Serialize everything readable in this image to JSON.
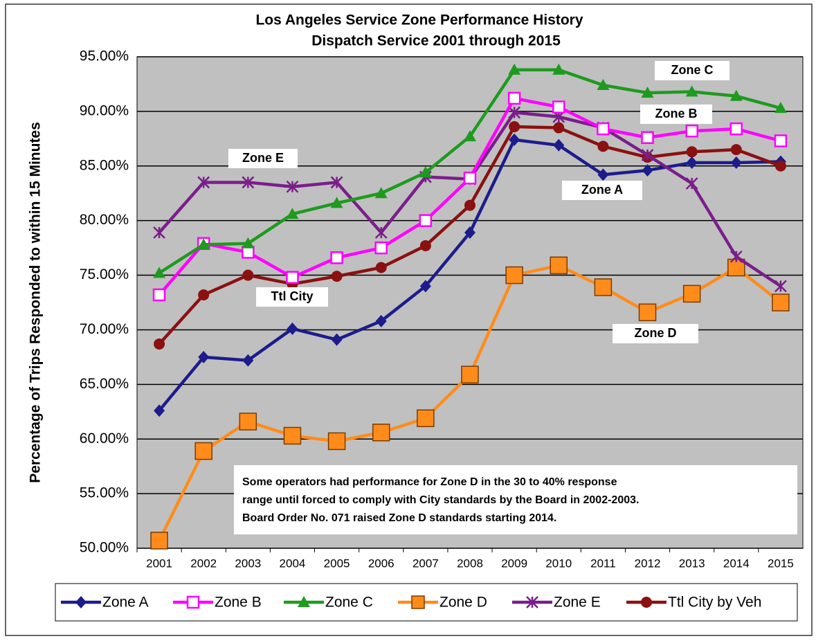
{
  "chart_data": {
    "type": "line",
    "title": "Los Angeles Service Zone Performance History",
    "subtitle": "Dispatch Service 2001 through 2015",
    "y_label": "Percentage of Trips Responded to within 15 Minutes",
    "categories": [
      "2001",
      "2002",
      "2003",
      "2004",
      "2005",
      "2006",
      "2007",
      "2008",
      "2009",
      "2010",
      "2011",
      "2012",
      "2013",
      "2014",
      "2015"
    ],
    "ylim": [
      50,
      95
    ],
    "yticks": [
      {
        "value": 50,
        "label": "50.00%"
      },
      {
        "value": 55,
        "label": "55.00%"
      },
      {
        "value": 60,
        "label": "60.00%"
      },
      {
        "value": 65,
        "label": "65.00%"
      },
      {
        "value": 70,
        "label": "70.00%"
      },
      {
        "value": 75,
        "label": "75.00%"
      },
      {
        "value": 80,
        "label": "80.00%"
      },
      {
        "value": 85,
        "label": "85.00%"
      },
      {
        "value": 90,
        "label": "90.00%"
      },
      {
        "value": 95,
        "label": "95.00%"
      }
    ],
    "grid": true,
    "series": [
      {
        "name": "Zone A",
        "color": "#1c1c8c",
        "marker": "diamond",
        "values": [
          62.6,
          67.5,
          67.2,
          70.1,
          69.1,
          70.8,
          74.0,
          78.9,
          87.4,
          86.9,
          84.2,
          84.6,
          85.3,
          85.3,
          85.4
        ]
      },
      {
        "name": "Zone B",
        "color": "#ff00ff",
        "marker": "open-square",
        "values": [
          73.2,
          77.9,
          77.1,
          74.8,
          76.6,
          77.5,
          80.0,
          83.9,
          91.2,
          90.4,
          88.4,
          87.6,
          88.2,
          88.4,
          87.3
        ]
      },
      {
        "name": "Zone C",
        "color": "#1e9a1e",
        "marker": "triangle",
        "values": [
          75.2,
          77.8,
          77.9,
          80.6,
          81.6,
          82.5,
          84.4,
          87.7,
          93.8,
          93.8,
          92.4,
          91.7,
          91.8,
          91.4,
          90.3
        ]
      },
      {
        "name": "Zone D",
        "color": "#ff8c1a",
        "marker": "square",
        "values": [
          50.7,
          58.9,
          61.6,
          60.3,
          59.8,
          60.6,
          61.9,
          65.9,
          75.0,
          75.9,
          73.9,
          71.6,
          73.3,
          75.7,
          72.5
        ]
      },
      {
        "name": "Zone E",
        "color": "#7a1e8a",
        "marker": "star",
        "values": [
          78.9,
          83.5,
          83.5,
          83.1,
          83.5,
          78.9,
          84.0,
          83.8,
          89.9,
          89.5,
          88.5,
          86.0,
          83.4,
          76.7,
          74.0
        ]
      },
      {
        "name": "Ttl City by Veh",
        "color": "#8b1010",
        "marker": "circle",
        "values": [
          68.7,
          73.2,
          75.0,
          74.2,
          74.9,
          75.7,
          77.7,
          81.4,
          88.6,
          88.5,
          86.8,
          85.8,
          86.3,
          86.5,
          85.0
        ]
      }
    ],
    "annotations": [
      "Zone E",
      "Ttl City",
      "Zone C",
      "Zone B",
      "Zone A",
      "Zone D"
    ],
    "note": [
      "Some operators had performance for Zone D in the 30 to 40% response",
      "range until forced to comply with City standards by the Board in 2002-2003.",
      "Board Order No. 071 raised Zone D standards starting 2014."
    ]
  }
}
